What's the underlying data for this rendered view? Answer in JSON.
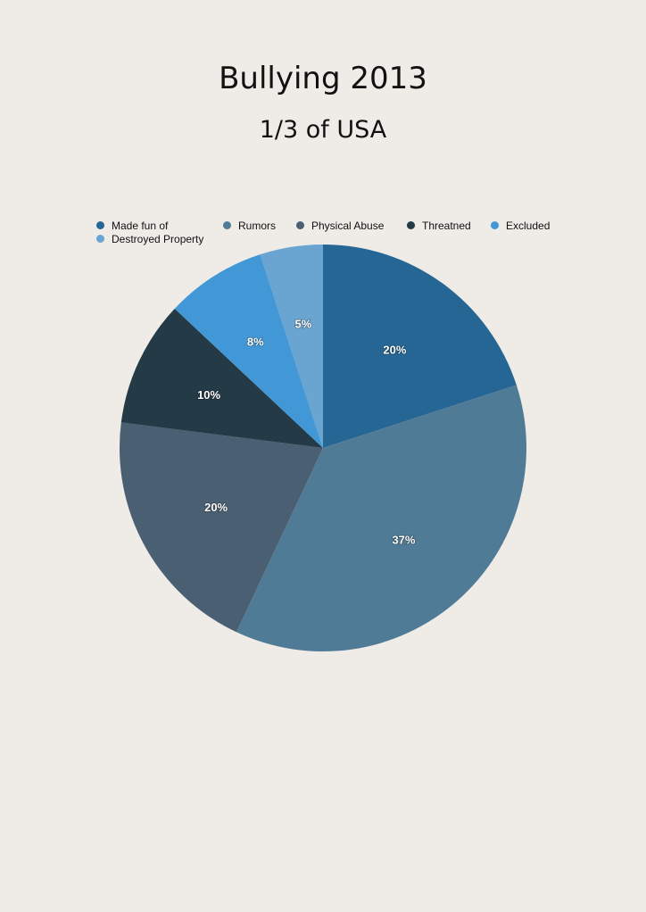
{
  "chart_data": {
    "type": "pie",
    "title": "Bullying 2013",
    "subtitle": "1/3 of USA",
    "legend_position": "top",
    "slices": [
      {
        "name": "Made fun of",
        "value": 20,
        "label": "20%",
        "color": "#266694"
      },
      {
        "name": "Rumors",
        "value": 37,
        "label": "37%",
        "color": "#507b96"
      },
      {
        "name": "Physical Abuse",
        "value": 20,
        "label": "20%",
        "color": "#4a5f71"
      },
      {
        "name": "Threatned",
        "value": 10,
        "label": "10%",
        "color": "#253a47"
      },
      {
        "name": "Excluded",
        "value": 8,
        "label": "8%",
        "color": "#4298d6"
      },
      {
        "name": "Destroyed Property",
        "value": 5,
        "label": "5%",
        "color": "#6aa4d1"
      }
    ]
  }
}
